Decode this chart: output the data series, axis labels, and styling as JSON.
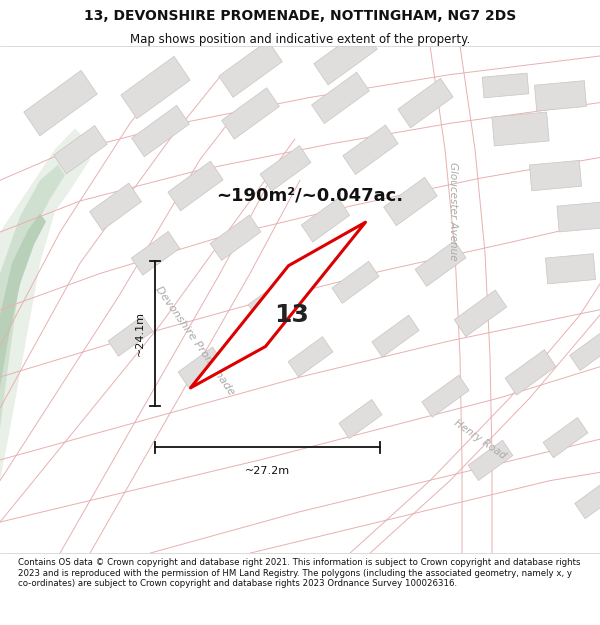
{
  "title_line1": "13, DEVONSHIRE PROMENADE, NOTTINGHAM, NG7 2DS",
  "title_line2": "Map shows position and indicative extent of the property.",
  "footer_text": "Contains OS data © Crown copyright and database right 2021. This information is subject to Crown copyright and database rights 2023 and is reproduced with the permission of HM Land Registry. The polygons (including the associated geometry, namely x, y co-ordinates) are subject to Crown copyright and database rights 2023 Ordnance Survey 100026316.",
  "area_label": "~190m²/~0.047ac.",
  "number_label": "13",
  "dim_height": "~24.1m",
  "dim_width": "~27.2m",
  "street_label_devonshire": "Devonshire Promenade",
  "street_label_gloucester": "Gloucester Avenue",
  "street_label_henry": "Henry Road",
  "map_bg": "#ffffff",
  "road_line_color": "#e8b0b0",
  "building_color": "#e0dedd",
  "building_stroke": "#c8c4c0",
  "green_color_light": "#e8f0e8",
  "green_color_dark": "#d0e0d0",
  "green_color_darkest": "#b8d0b8",
  "property_stroke": "#dd0000",
  "dimension_color": "#111111",
  "title_fontsize": 10,
  "subtitle_fontsize": 8.5,
  "footer_fontsize": 6.2,
  "area_fontsize": 13,
  "number_fontsize": 18,
  "street_fontsize_main": 8,
  "street_fontsize_side": 7.5
}
